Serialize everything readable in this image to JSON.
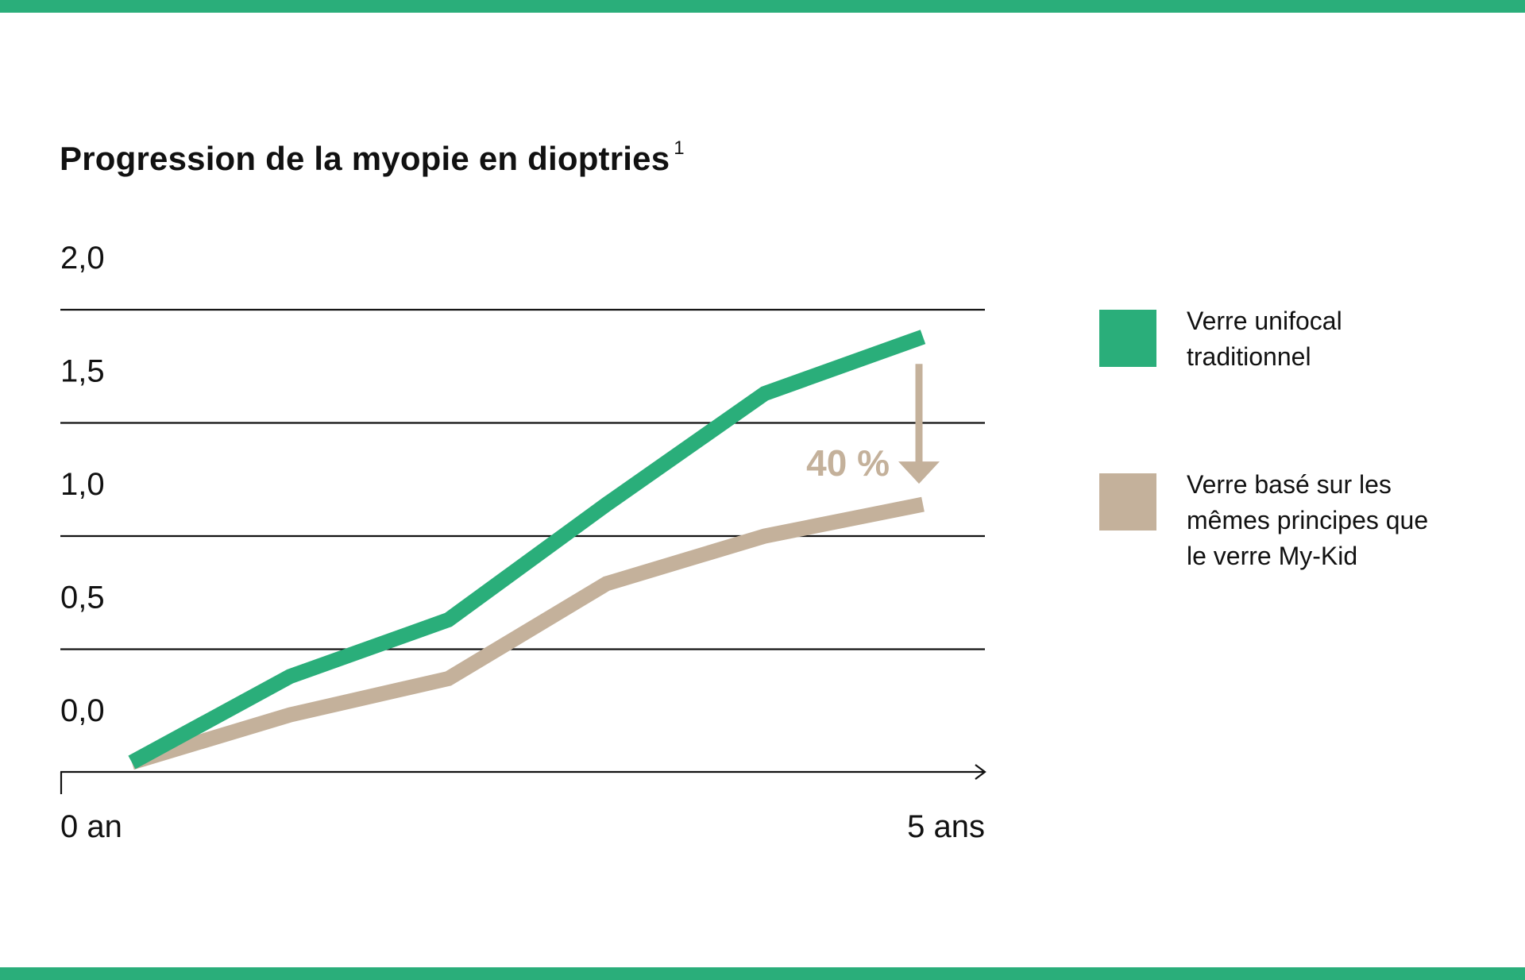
{
  "colors": {
    "brand_green": "#2aae7a",
    "beige": "#c4b19b",
    "axis": "#111111"
  },
  "chart_data": {
    "type": "line",
    "title": "Progression de la myopie en dioptries",
    "title_footnote": "1",
    "x_labels": [
      "0 an",
      "5 ans"
    ],
    "x": [
      0,
      1,
      2,
      3,
      4,
      5
    ],
    "xlim": [
      0,
      5
    ],
    "y_tick_labels": [
      "2,0",
      "1,5",
      "1,0",
      "0,5",
      "0,0"
    ],
    "ylim": [
      0,
      2.0
    ],
    "grid": true,
    "legend_position": "right",
    "series": [
      {
        "name": "Verre unifocal traditionnel",
        "color": "#2aae7a",
        "values": [
          0,
          0.38,
          0.63,
          1.14,
          1.63,
          1.88
        ]
      },
      {
        "name": "Verre basé sur les mêmes principes que le verre My-Kid",
        "color": "#c4b19b",
        "values": [
          0,
          0.21,
          0.37,
          0.79,
          1.0,
          1.14
        ]
      }
    ],
    "annotation": {
      "label": "40 %",
      "color": "#c4b19b"
    }
  }
}
